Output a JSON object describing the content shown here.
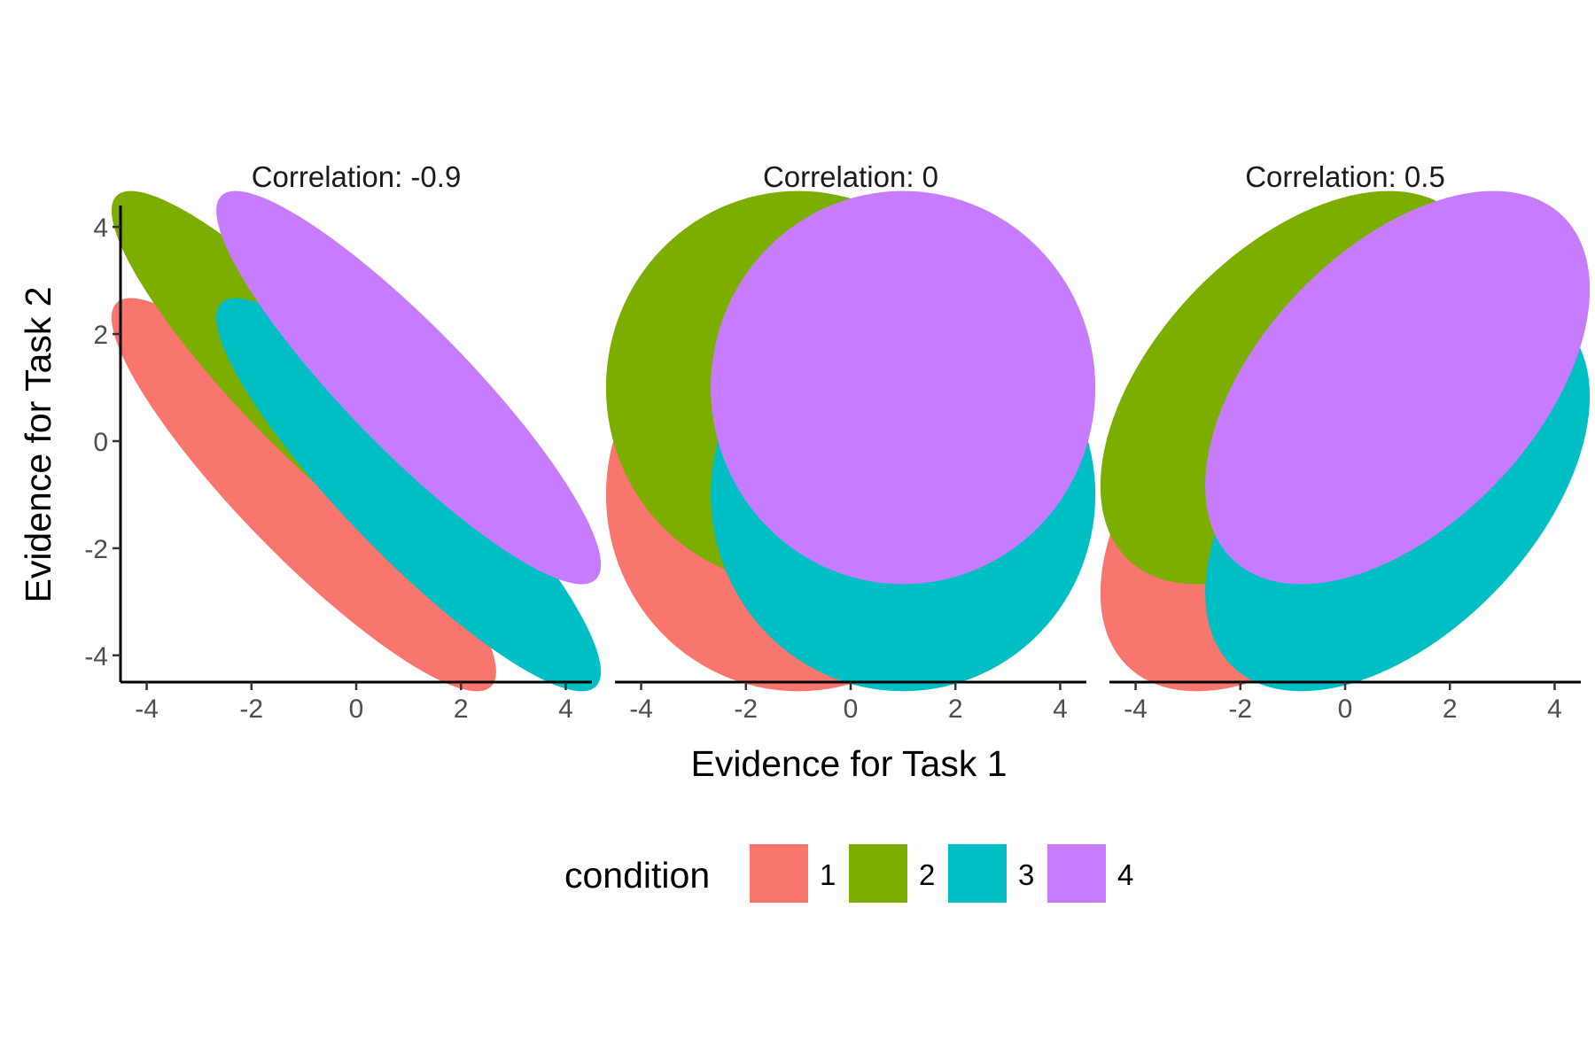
{
  "chart_data": {
    "type": "scatter",
    "geometry": "confidence-ellipse",
    "xlabel": "Evidence for Task 1",
    "ylabel": "Evidence for Task 2",
    "xlim": [
      -4.5,
      4.5
    ],
    "ylim": [
      -4.5,
      4.4
    ],
    "x_ticks": [
      -4,
      -2,
      0,
      2,
      4
    ],
    "y_ticks": [
      -4,
      -2,
      0,
      2,
      4
    ],
    "x_tick_labels": [
      "-4",
      "-2",
      "0",
      "2",
      "4"
    ],
    "y_tick_labels": [
      "-4",
      "-2",
      "0",
      "2",
      "4"
    ],
    "grid": false,
    "legend": {
      "title": "condition",
      "position": "bottom",
      "entries": [
        {
          "label": "1",
          "color": "#F8766D"
        },
        {
          "label": "2",
          "color": "#7CAE00"
        },
        {
          "label": "3",
          "color": "#00BFC4"
        },
        {
          "label": "4",
          "color": "#C77CFF"
        }
      ]
    },
    "panels": [
      {
        "title": "Correlation: -0.9",
        "correlation": -0.9,
        "series": [
          {
            "condition": "1",
            "color": "#F8766D",
            "center": [
              -1,
              -1
            ],
            "sd": [
              1.5,
              1.5
            ]
          },
          {
            "condition": "2",
            "color": "#7CAE00",
            "center": [
              -1,
              1
            ],
            "sd": [
              1.5,
              1.5
            ]
          },
          {
            "condition": "3",
            "color": "#00BFC4",
            "center": [
              1,
              -1
            ],
            "sd": [
              1.5,
              1.5
            ]
          },
          {
            "condition": "4",
            "color": "#C77CFF",
            "center": [
              1,
              1
            ],
            "sd": [
              1.5,
              1.5
            ]
          }
        ]
      },
      {
        "title": "Correlation: 0",
        "correlation": 0,
        "series": [
          {
            "condition": "1",
            "color": "#F8766D",
            "center": [
              -1,
              -1
            ],
            "sd": [
              1.5,
              1.5
            ]
          },
          {
            "condition": "2",
            "color": "#7CAE00",
            "center": [
              -1,
              1
            ],
            "sd": [
              1.5,
              1.5
            ]
          },
          {
            "condition": "3",
            "color": "#00BFC4",
            "center": [
              1,
              -1
            ],
            "sd": [
              1.5,
              1.5
            ]
          },
          {
            "condition": "4",
            "color": "#C77CFF",
            "center": [
              1,
              1
            ],
            "sd": [
              1.5,
              1.5
            ]
          }
        ]
      },
      {
        "title": "Correlation: 0.5",
        "correlation": 0.5,
        "series": [
          {
            "condition": "1",
            "color": "#F8766D",
            "center": [
              -1,
              -1
            ],
            "sd": [
              1.5,
              1.5
            ]
          },
          {
            "condition": "2",
            "color": "#7CAE00",
            "center": [
              -1,
              1
            ],
            "sd": [
              1.5,
              1.5
            ]
          },
          {
            "condition": "3",
            "color": "#00BFC4",
            "center": [
              1,
              -1
            ],
            "sd": [
              1.5,
              1.5
            ]
          },
          {
            "condition": "4",
            "color": "#C77CFF",
            "center": [
              1,
              1
            ],
            "sd": [
              1.5,
              1.5
            ]
          }
        ]
      }
    ]
  }
}
